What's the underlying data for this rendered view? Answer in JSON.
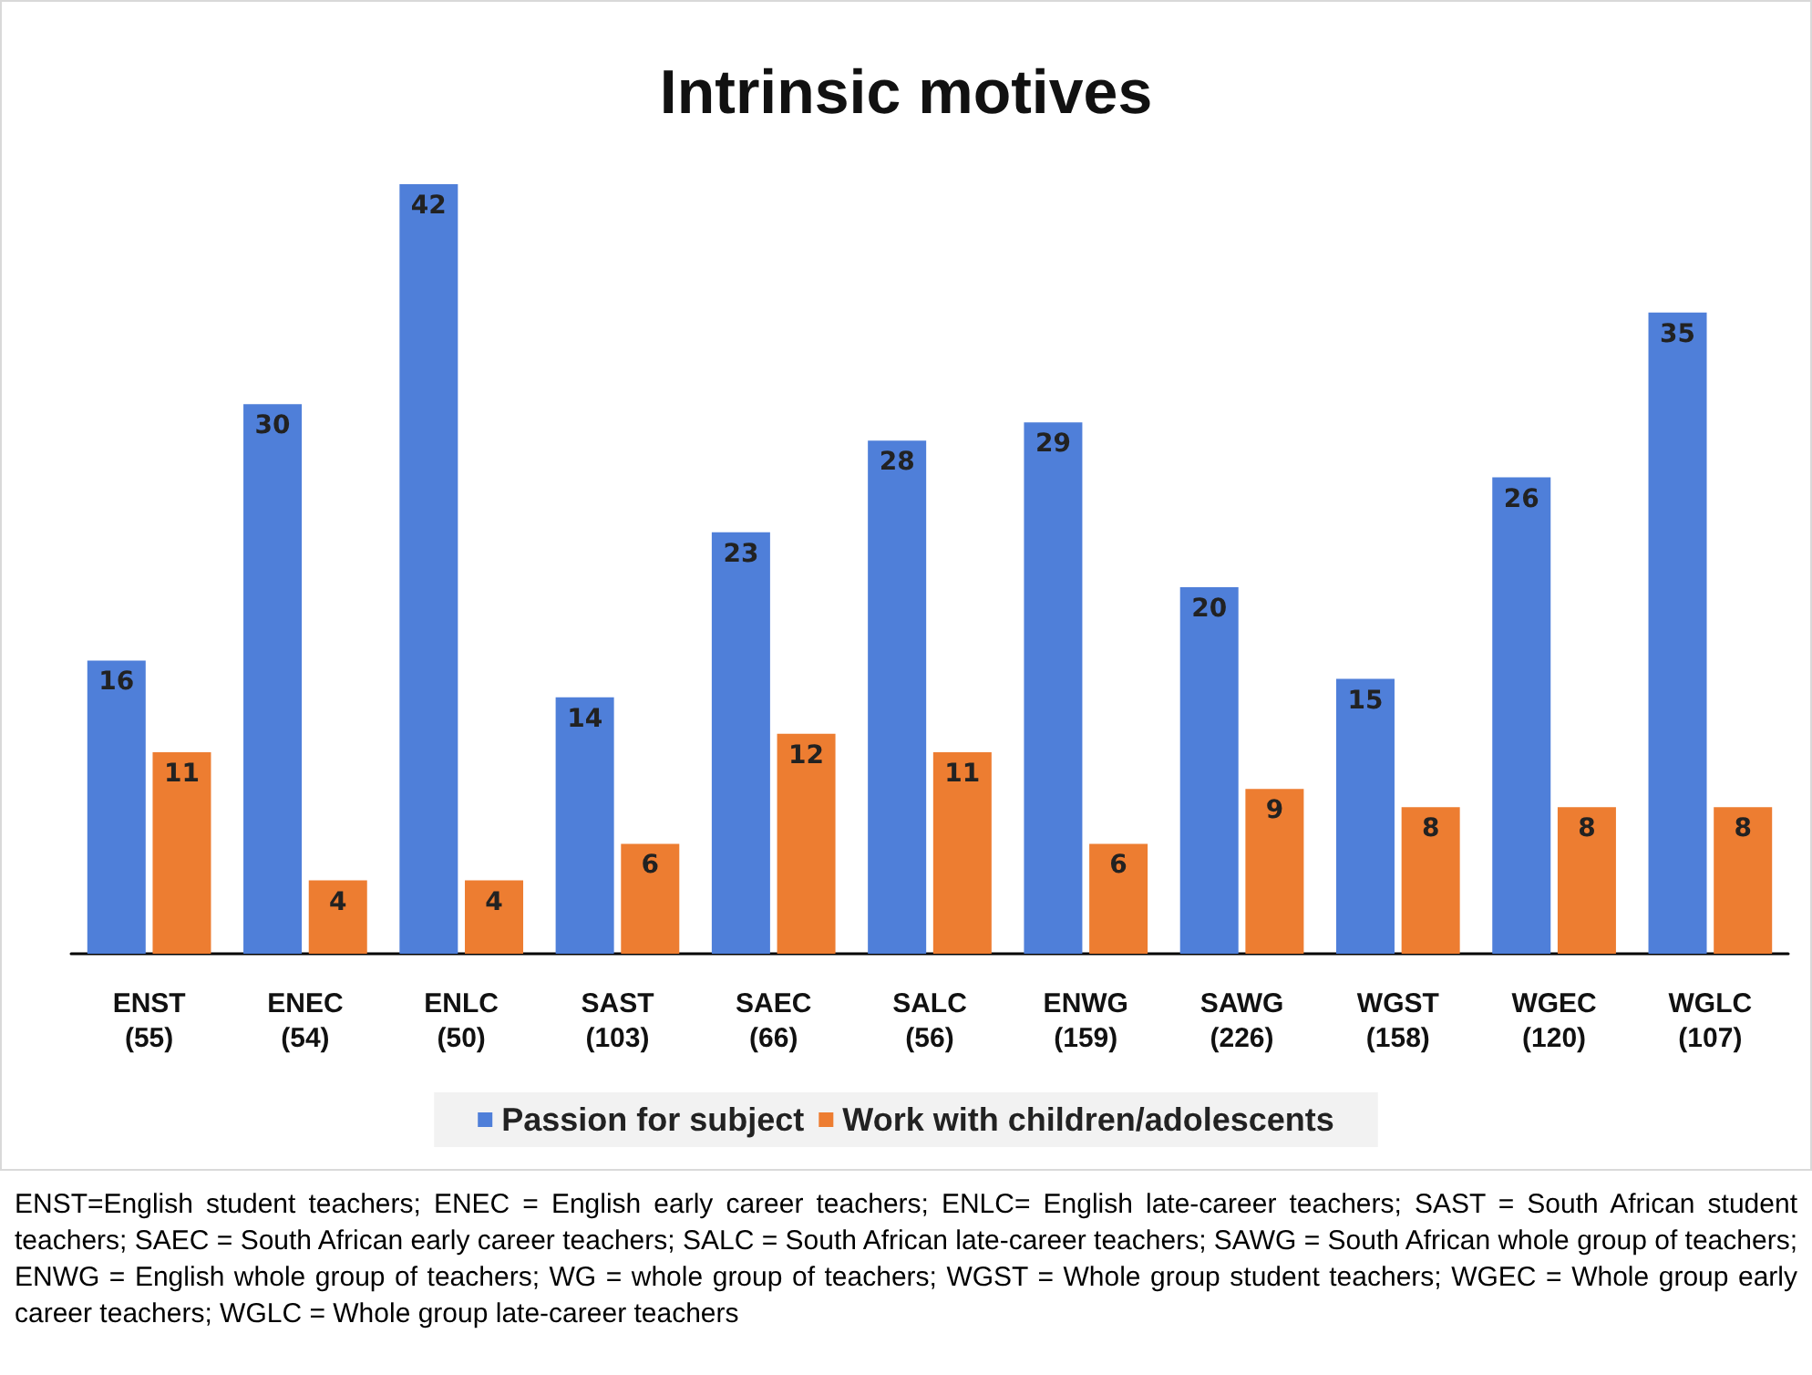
{
  "chart_data": {
    "type": "bar",
    "title": "Intrinsic motives",
    "categories": [
      "ENST\n(55)",
      "ENEC\n(54)",
      "ENLC\n(50)",
      "SAST\n(103)",
      "SAEC\n(66)",
      "SALC\n(56)",
      "ENWG\n(159)",
      "SAWG\n(226)",
      "WGST\n(158)",
      "WGEC\n(120)",
      "WGLC\n(107)"
    ],
    "series": [
      {
        "name": "Passion for subject",
        "color": "#4f7fd9",
        "values": [
          16,
          30,
          42,
          14,
          23,
          28,
          29,
          20,
          15,
          26,
          35
        ]
      },
      {
        "name": "Work with children/adolescents",
        "color": "#ed7d31",
        "values": [
          11,
          4,
          4,
          6,
          12,
          11,
          6,
          9,
          8,
          8,
          8
        ]
      }
    ],
    "data_labels": true,
    "legend": "bottom",
    "grid": false,
    "annotations": [
      "ENST=English student teachers; ENEC = English early career teachers; ENLC= English late-career teachers; SAST = South African student teachers; SAEC = South African early career teachers; SALC = South African late-career teachers; SAWG = South African whole group of teachers; ENWG = English whole group of teachers; WG = whole group of teachers; WGST = Whole group student teachers; WGEC = Whole group early career teachers; WGLC = Whole group late-career teachers"
    ]
  }
}
